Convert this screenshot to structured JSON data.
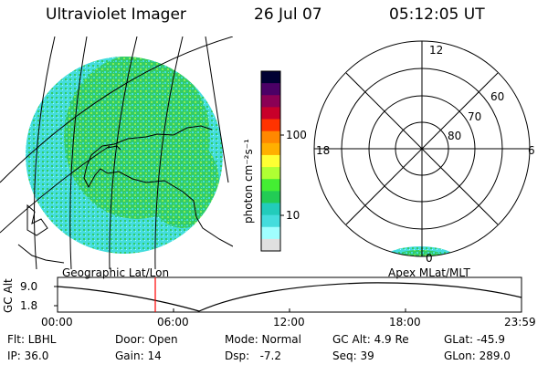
{
  "header": {
    "instrument": "Ultraviolet Imager",
    "date": "26 Jul 07",
    "time": "05:12:05 UT"
  },
  "colorbar": {
    "label": "photon cm⁻²s⁻¹",
    "ticks": [
      "100",
      "10"
    ],
    "scale": "log",
    "colors": [
      "#000033",
      "#4b0066",
      "#8b0055",
      "#c8002a",
      "#ff3300",
      "#ff8800",
      "#ffb000",
      "#ffff33",
      "#b0ff33",
      "#44ee33",
      "#22cc55",
      "#22ccbb",
      "#44dddd",
      "#a0ffff",
      "#e0e0e0"
    ]
  },
  "geo_panel": {
    "caption": "Geographic Lat/Lon",
    "fill_colors": [
      "#33cc66",
      "#44dddd",
      "#88ee55"
    ]
  },
  "polar_panel": {
    "caption": "Apex MLat/MLT",
    "lat_labels": [
      "60",
      "70",
      "80"
    ],
    "mlt_labels": {
      "top": "12",
      "left": "18",
      "right": "6",
      "bottom": "0"
    }
  },
  "timeline": {
    "ylabel": "GC Alt",
    "yticks": [
      "9.0",
      "1.8"
    ],
    "xticks": [
      "00:00",
      "06:00",
      "12:00",
      "18:00",
      "23:59"
    ],
    "current_time_marker": "05:12",
    "marker_color": "#ff0000"
  },
  "info": {
    "filter": "Flt: LBHL",
    "ip": "IP: 36.0",
    "door": "Door: Open",
    "gain": "Gain: 14",
    "mode": "Mode: Normal",
    "dsp": "Dsp:   -7.2",
    "gc_alt": "GC Alt: 4.9 Re",
    "seq": "Seq: 39",
    "glat": "GLat: -45.9",
    "glon": "GLon: 289.0"
  }
}
